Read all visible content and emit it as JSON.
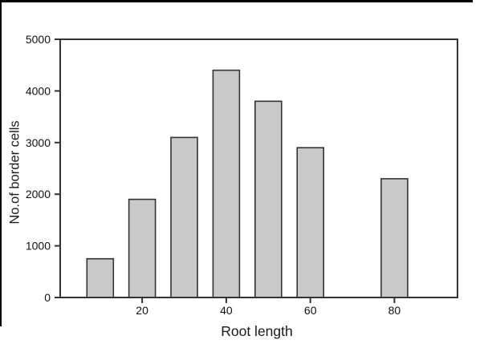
{
  "figure": {
    "background": "#ffffff",
    "frame_color": "#000000"
  },
  "chart_data": {
    "type": "bar",
    "title": "",
    "xlabel": "Root length",
    "ylabel": "No.of border cells",
    "x": [
      10,
      20,
      30,
      40,
      50,
      60,
      80
    ],
    "values": [
      750,
      1900,
      3100,
      4400,
      3800,
      2900,
      2300
    ],
    "bar_width_units": 6.3,
    "xlim": [
      0.5,
      95
    ],
    "ylim": [
      0,
      5000
    ],
    "x_ticks": [
      20,
      40,
      60,
      80
    ],
    "y_ticks": [
      0,
      1000,
      2000,
      3000,
      4000,
      5000
    ],
    "bar_fill": "#c9c9c9",
    "bar_stroke": "#333333",
    "axis_color": "#333333",
    "grid": false,
    "legend": null
  }
}
